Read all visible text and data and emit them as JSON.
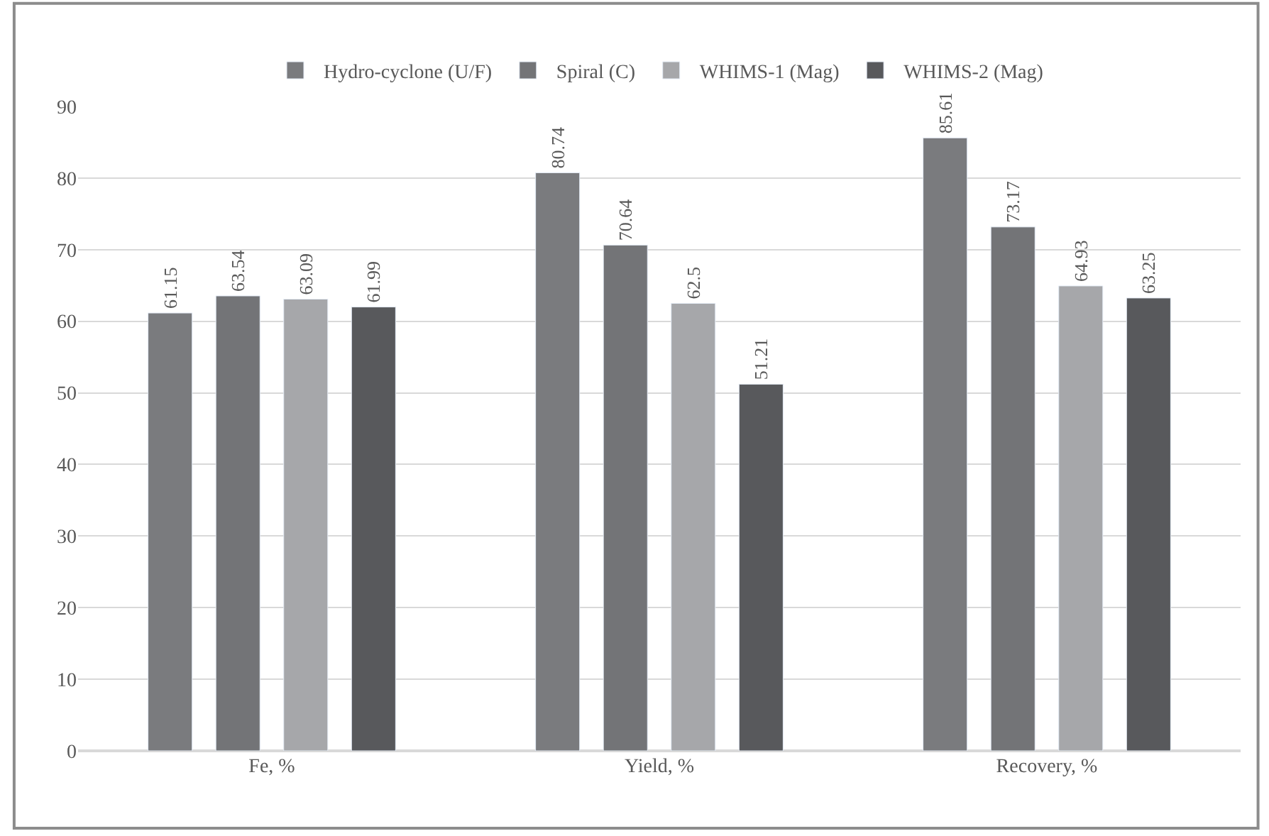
{
  "chart_data": {
    "type": "bar",
    "categories": [
      "Fe, %",
      "Yield, %",
      "Recovery, %"
    ],
    "series": [
      {
        "name": "Hydro-cyclone (U/F)",
        "color": "#7a7b7e",
        "values": [
          61.15,
          80.74,
          85.61
        ]
      },
      {
        "name": "Spiral (C)",
        "color": "#737477",
        "values": [
          63.54,
          70.64,
          73.17
        ]
      },
      {
        "name": "WHIMS-1 (Mag)",
        "color": "#a6a7aa",
        "values": [
          63.09,
          62.5,
          64.93
        ]
      },
      {
        "name": "WHIMS-2 (Mag)",
        "color": "#58595c",
        "values": [
          61.99,
          51.21,
          63.25
        ]
      }
    ],
    "ylim": [
      0,
      90
    ],
    "yticks": [
      0,
      10,
      20,
      30,
      40,
      50,
      60,
      70,
      80,
      90
    ],
    "grid": "y",
    "legend": "top",
    "data_labels": true
  }
}
